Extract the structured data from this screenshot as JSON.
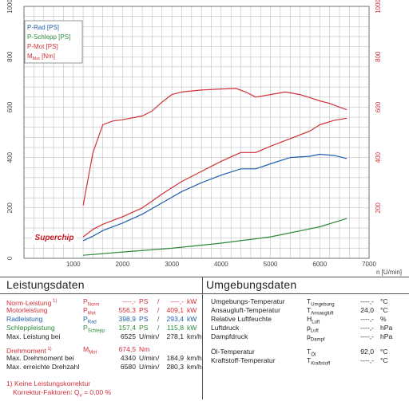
{
  "chart_data": {
    "type": "line",
    "xlabel": "n [U/min]",
    "xlim": [
      0,
      7000
    ],
    "xticks": [
      1000,
      2000,
      3000,
      4000,
      5000,
      6000,
      7000
    ],
    "ylim_left": [
      0,
      1000
    ],
    "ylim_right": [
      0,
      1000
    ],
    "yticks_left": [
      0,
      200,
      400,
      600,
      800,
      1000
    ],
    "yticks_right": [
      200,
      400,
      600,
      800,
      1000
    ],
    "grid": true,
    "legend_position": "top-left",
    "series": [
      {
        "name": "P-Rad [PS]",
        "color": "#1f5fae",
        "x": [
          1200,
          1400,
          1600,
          2000,
          2400,
          2800,
          3200,
          3600,
          4000,
          4400,
          4700,
          5000,
          5400,
          5800,
          6000,
          6300,
          6550
        ],
        "y": [
          70,
          88,
          110,
          140,
          175,
          220,
          265,
          300,
          330,
          355,
          355,
          375,
          400,
          405,
          413,
          408,
          396
        ]
      },
      {
        "name": "P-Schlepp [PS]",
        "color": "#2e8a3a",
        "x": [
          1200,
          2000,
          3000,
          4000,
          5000,
          6000,
          6550
        ],
        "y": [
          12,
          25,
          40,
          60,
          85,
          125,
          158
        ]
      },
      {
        "name": "P-Mot [PS]",
        "color": "#d0313a",
        "x": [
          1200,
          1400,
          1600,
          2000,
          2400,
          2800,
          3200,
          3600,
          4000,
          4400,
          4700,
          5000,
          5400,
          5800,
          6000,
          6300,
          6550
        ],
        "y": [
          85,
          115,
          135,
          165,
          200,
          255,
          305,
          345,
          385,
          420,
          420,
          445,
          475,
          505,
          530,
          548,
          556
        ]
      },
      {
        "name": "M<sub>Mot</sub> [Nm]",
        "color": "#d0313a",
        "x": [
          1200,
          1400,
          1600,
          1800,
          2000,
          2400,
          2600,
          2800,
          3000,
          3200,
          3600,
          4000,
          4300,
          4500,
          4700,
          5000,
          5300,
          5600,
          5800,
          6000,
          6200,
          6400,
          6550
        ],
        "y": [
          210,
          420,
          530,
          545,
          550,
          565,
          585,
          620,
          650,
          660,
          668,
          672,
          674,
          660,
          640,
          650,
          660,
          650,
          638,
          625,
          615,
          600,
          590
        ]
      }
    ]
  },
  "logo_text": "Superchip",
  "left_panel": {
    "title": "Leistungsdaten",
    "rows": [
      {
        "label": "Norm-Leistung",
        "note": "1)",
        "sym": "P",
        "sub": "Norm",
        "v1": "----,-",
        "u1": "PS",
        "sep": "/",
        "v2": "----,-",
        "u2": "kW",
        "color": "red"
      },
      {
        "label": "Motorleistung",
        "note": "",
        "sym": "P",
        "sub": "Mot",
        "v1": "556,3",
        "u1": "PS",
        "sep": "/",
        "v2": "409,1",
        "u2": "kW",
        "color": "red"
      },
      {
        "label": "Radleistung",
        "note": "",
        "sym": "P",
        "sub": "Rad",
        "v1": "398,9",
        "u1": "PS",
        "sep": "/",
        "v2": "293,4",
        "u2": "kW",
        "color": "blue"
      },
      {
        "label": "Schleppleistung",
        "note": "",
        "sym": "P",
        "sub": "Schlepp",
        "v1": "157,4",
        "u1": "PS",
        "sep": "/",
        "v2": "115,8",
        "u2": "kW",
        "color": "green"
      },
      {
        "label": "Max. Leistung bei",
        "note": "",
        "sym": "",
        "sub": "",
        "v1": "6525",
        "u1": "U/min",
        "sep": "/",
        "v2": "278,1",
        "u2": "km/h",
        "color": ""
      },
      {
        "label": "Drehmoment",
        "note": "1)",
        "sym": "M",
        "sub": "Mot",
        "v1": "674,5",
        "u1": "Nm",
        "sep": "",
        "v2": "",
        "u2": "",
        "color": "red"
      },
      {
        "label": "Max. Drehmoment bei",
        "note": "",
        "sym": "",
        "sub": "",
        "v1": "4340",
        "u1": "U/min",
        "sep": "/",
        "v2": "184,9",
        "u2": "km/h",
        "color": ""
      },
      {
        "label": "Max. erreichte Drehzahl",
        "note": "",
        "sym": "",
        "sub": "",
        "v1": "6580",
        "u1": "U/min",
        "sep": "/",
        "v2": "280,3",
        "u2": "km/h",
        "color": ""
      }
    ],
    "footnote_line1": "1) Keine Leistungskorrektur",
    "footnote_line2_prefix": "Korrektur-Faktoren: Q",
    "footnote_sub": "v",
    "footnote_value": "=   0,00 %"
  },
  "right_panel": {
    "title": "Umgebungsdaten",
    "rows": [
      {
        "label": "Umgebungs-Temperatur",
        "sym": "T",
        "sub": "Umgebung",
        "value": "----,-",
        "unit": "°C"
      },
      {
        "label": "Ansaugluft-Temperatur",
        "sym": "T",
        "sub": "Ansaugluft",
        "value": "24,0",
        "unit": "°C"
      },
      {
        "label": "Relative Luftfeuchte",
        "sym": "H",
        "sub": "Luft",
        "value": "----,-",
        "unit": "%"
      },
      {
        "label": "Luftdruck",
        "sym": "p",
        "sub": "Luft",
        "value": "----,-",
        "unit": "hPa"
      },
      {
        "label": "Dampfdruck",
        "sym": "p",
        "sub": "Dampf",
        "value": "----,-",
        "unit": "hPa"
      },
      {
        "label": "Öl-Temperatur",
        "sym": "T",
        "sub": "Öl",
        "value": "92,0",
        "unit": "°C"
      },
      {
        "label": "Kraftstoff-Temperatur",
        "sym": "T",
        "sub": "Kraftstoff",
        "value": "----,-",
        "unit": "°C"
      }
    ]
  }
}
